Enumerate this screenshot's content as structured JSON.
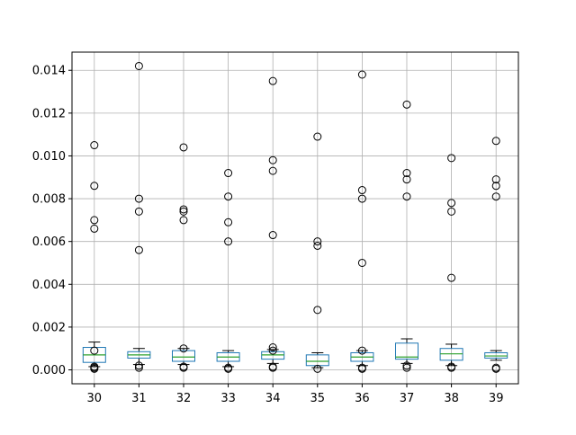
{
  "chart_data": {
    "type": "box",
    "title": "",
    "xlabel": "",
    "ylabel": "",
    "grid": true,
    "ylim": [
      -0.00065,
      0.01485
    ],
    "y_ticks": [
      0.0,
      0.002,
      0.004,
      0.006,
      0.008,
      0.01,
      0.012,
      0.014
    ],
    "y_tick_labels": [
      "0.000",
      "0.002",
      "0.004",
      "0.006",
      "0.008",
      "0.010",
      "0.012",
      "0.014"
    ],
    "categories": [
      "30",
      "31",
      "32",
      "33",
      "34",
      "35",
      "36",
      "37",
      "38",
      "39"
    ],
    "boxes": [
      {
        "category": "30",
        "whisker_low": 0.00015,
        "q1": 0.00035,
        "median": 0.0007,
        "q3": 0.00105,
        "whisker_high": 0.0013,
        "outliers": [
          0.0105,
          0.0086,
          0.007,
          0.0066,
          0.0009,
          0.00015,
          0.0001,
          5e-05
        ]
      },
      {
        "category": "31",
        "whisker_low": 0.00025,
        "q1": 0.00055,
        "median": 0.0007,
        "q3": 0.00085,
        "whisker_high": 0.001,
        "outliers": [
          0.0142,
          0.008,
          0.0074,
          0.0056,
          0.0002,
          0.0001
        ]
      },
      {
        "category": "32",
        "whisker_low": 0.00025,
        "q1": 0.0004,
        "median": 0.0006,
        "q3": 0.0009,
        "whisker_high": 0.001,
        "outliers": [
          0.0104,
          0.0075,
          0.0074,
          0.007,
          0.001,
          0.00015,
          0.0001
        ]
      },
      {
        "category": "33",
        "whisker_low": 0.00015,
        "q1": 0.0004,
        "median": 0.0006,
        "q3": 0.0008,
        "whisker_high": 0.0009,
        "outliers": [
          0.0092,
          0.0081,
          0.0069,
          0.006,
          0.0001,
          5e-05
        ]
      },
      {
        "category": "34",
        "whisker_low": 0.0003,
        "q1": 0.0005,
        "median": 0.0007,
        "q3": 0.00085,
        "whisker_high": 0.00095,
        "outliers": [
          0.0135,
          0.0098,
          0.0093,
          0.0063,
          0.00105,
          0.0009,
          0.00015,
          0.0001
        ]
      },
      {
        "category": "35",
        "whisker_low": 0.0001,
        "q1": 0.0002,
        "median": 0.0004,
        "q3": 0.0007,
        "whisker_high": 0.0008,
        "outliers": [
          0.0109,
          0.006,
          0.0058,
          0.0028,
          5e-05
        ]
      },
      {
        "category": "36",
        "whisker_low": 0.0002,
        "q1": 0.0004,
        "median": 0.0006,
        "q3": 0.0008,
        "whisker_high": 0.0009,
        "outliers": [
          0.0138,
          0.0084,
          0.008,
          0.005,
          0.0009,
          0.0001,
          5e-05
        ]
      },
      {
        "category": "37",
        "whisker_low": 0.0003,
        "q1": 0.0005,
        "median": 0.0006,
        "q3": 0.00125,
        "whisker_high": 0.00145,
        "outliers": [
          0.0124,
          0.0092,
          0.0089,
          0.0081,
          0.0002,
          0.0001
        ]
      },
      {
        "category": "38",
        "whisker_low": 0.0002,
        "q1": 0.00045,
        "median": 0.00075,
        "q3": 0.001,
        "whisker_high": 0.0012,
        "outliers": [
          0.0099,
          0.0078,
          0.0074,
          0.0043,
          0.00015,
          0.0001
        ]
      },
      {
        "category": "39",
        "whisker_low": 0.00045,
        "q1": 0.00055,
        "median": 0.00065,
        "q3": 0.0008,
        "whisker_high": 0.0009,
        "outliers": [
          0.0107,
          0.0089,
          0.0086,
          0.0081,
          0.0001,
          5e-05
        ]
      }
    ],
    "colors": {
      "box": "#1f77b4",
      "median": "#2ca02c",
      "whisker": "#000000",
      "outlier": "#000000",
      "grid": "#b0b0b0",
      "axis": "#000000"
    }
  }
}
